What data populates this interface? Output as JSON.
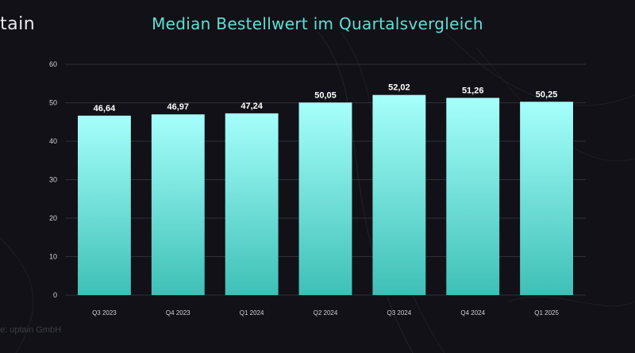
{
  "logo_text": "tain",
  "source_text": "e: uptain GmbH",
  "colors": {
    "background": "#111117",
    "title": "#5fe0d4",
    "bar_top": "#a6fffb",
    "bar_bottom": "#3ec0b6",
    "grid": "#3a3a44"
  },
  "chart_data": {
    "type": "bar",
    "title": "Median Bestellwert im Quartalsvergleich",
    "xlabel": "",
    "ylabel": "",
    "categories": [
      "Q3 2023",
      "Q4 2023",
      "Q1 2024",
      "Q2 2024",
      "Q3 2024",
      "Q4 2024",
      "Q1 2025"
    ],
    "values": [
      46.64,
      46.97,
      47.24,
      50.05,
      52.02,
      51.26,
      50.25
    ],
    "value_labels": [
      "46,64",
      "46,97",
      "47,24",
      "50,05",
      "52,02",
      "51,26",
      "50,25"
    ],
    "ylim": [
      0,
      60
    ],
    "yticks": [
      0,
      10,
      20,
      30,
      40,
      50,
      60
    ],
    "grid": true,
    "legend": "none"
  }
}
